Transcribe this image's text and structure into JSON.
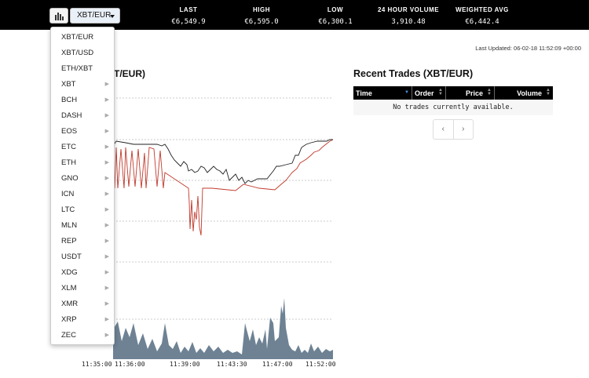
{
  "header": {
    "pair_label": "XBT/EUR",
    "stats": [
      {
        "label": "LAST",
        "value": "€6,549.9"
      },
      {
        "label": "HIGH",
        "value": "€6,595.0"
      },
      {
        "label": "LOW",
        "value": "€6,300.1"
      },
      {
        "label": "24 HOUR VOLUME",
        "value": "3,910.48"
      },
      {
        "label": "WEIGHTED AVG",
        "value": "€6,442.4"
      }
    ]
  },
  "last_updated": "Last Updated: 06-02-18 11:52:09 +00:00",
  "chart": {
    "title_visible": "T/EUR)",
    "x_ticks": [
      "11:35:00",
      "11:36:00",
      "11:39:00",
      "11:43:30",
      "11:47:00",
      "11:52:00"
    ]
  },
  "trades": {
    "title": "Recent Trades (XBT/EUR)",
    "columns": [
      "Time",
      "Order",
      "Price",
      "Volume"
    ],
    "empty_message": "No trades currently available.",
    "pager_prev": "‹",
    "pager_next": "›"
  },
  "dropdown": {
    "items": [
      {
        "label": "XBT/EUR",
        "submenu": false
      },
      {
        "label": "XBT/USD",
        "submenu": false
      },
      {
        "label": "ETH/XBT",
        "submenu": false
      },
      {
        "label": "XBT",
        "submenu": true
      },
      {
        "label": "BCH",
        "submenu": true
      },
      {
        "label": "DASH",
        "submenu": true
      },
      {
        "label": "EOS",
        "submenu": true
      },
      {
        "label": "ETC",
        "submenu": true
      },
      {
        "label": "ETH",
        "submenu": true
      },
      {
        "label": "GNO",
        "submenu": true
      },
      {
        "label": "ICN",
        "submenu": true
      },
      {
        "label": "LTC",
        "submenu": true
      },
      {
        "label": "MLN",
        "submenu": true
      },
      {
        "label": "REP",
        "submenu": true
      },
      {
        "label": "USDT",
        "submenu": true
      },
      {
        "label": "XDG",
        "submenu": true
      },
      {
        "label": "XLM",
        "submenu": true
      },
      {
        "label": "XMR",
        "submenu": true
      },
      {
        "label": "XRP",
        "submenu": true
      },
      {
        "label": "ZEC",
        "submenu": true
      }
    ]
  },
  "colors": {
    "header_bg": "#000000",
    "price_line": "#222222",
    "bid_line": "#c0392b",
    "volume_fill": "#6e8294",
    "sort_active": "#4a90e2"
  }
}
